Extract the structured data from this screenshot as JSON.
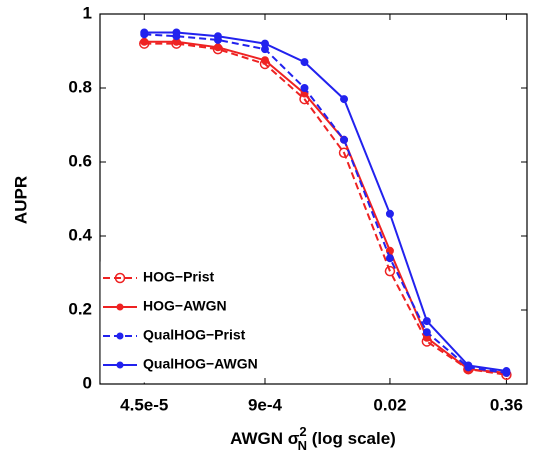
{
  "chart_data": {
    "type": "line",
    "ylabel": "AUPR",
    "xlabel": {
      "prefix": "AWGN σ",
      "sub": "N",
      "sup": "2",
      "suffix": " (log scale)"
    },
    "xscale": "log",
    "x": [
      4.5e-05,
      0.0001,
      0.00028,
      0.0009,
      0.0024,
      0.0064,
      0.02,
      0.05,
      0.14,
      0.36
    ],
    "xlim": [
      1.5e-05,
      0.6
    ],
    "xticks": [
      {
        "value": 4.5e-05,
        "label": "4.5e-5"
      },
      {
        "value": 0.0009,
        "label": "9e-4"
      },
      0.02,
      0.36
    ],
    "ylim": [
      0,
      1
    ],
    "yticks": [
      0,
      0.2,
      0.4,
      0.6,
      0.8,
      1
    ],
    "grid": false,
    "legend": "lower left",
    "series": [
      {
        "name": "HOG−Prist",
        "color": "#ee2222",
        "linestyle": "dashed",
        "marker": "open",
        "values": [
          0.92,
          0.92,
          0.905,
          0.865,
          0.77,
          0.625,
          0.305,
          0.115,
          0.04,
          0.025
        ]
      },
      {
        "name": "HOG−AWGN",
        "color": "#ee2222",
        "linestyle": "solid",
        "marker": "filled",
        "values": [
          0.925,
          0.925,
          0.91,
          0.875,
          0.785,
          0.66,
          0.36,
          0.125,
          0.04,
          0.03
        ]
      },
      {
        "name": "QualHOG−Prist",
        "color": "#2222ee",
        "linestyle": "dashed",
        "marker": "filled",
        "values": [
          0.945,
          0.94,
          0.93,
          0.905,
          0.8,
          0.66,
          0.34,
          0.14,
          0.045,
          0.03
        ]
      },
      {
        "name": "QualHOG−AWGN",
        "color": "#2222ee",
        "linestyle": "solid",
        "marker": "filled",
        "values": [
          0.95,
          0.95,
          0.94,
          0.92,
          0.87,
          0.77,
          0.46,
          0.17,
          0.05,
          0.035
        ]
      }
    ]
  }
}
